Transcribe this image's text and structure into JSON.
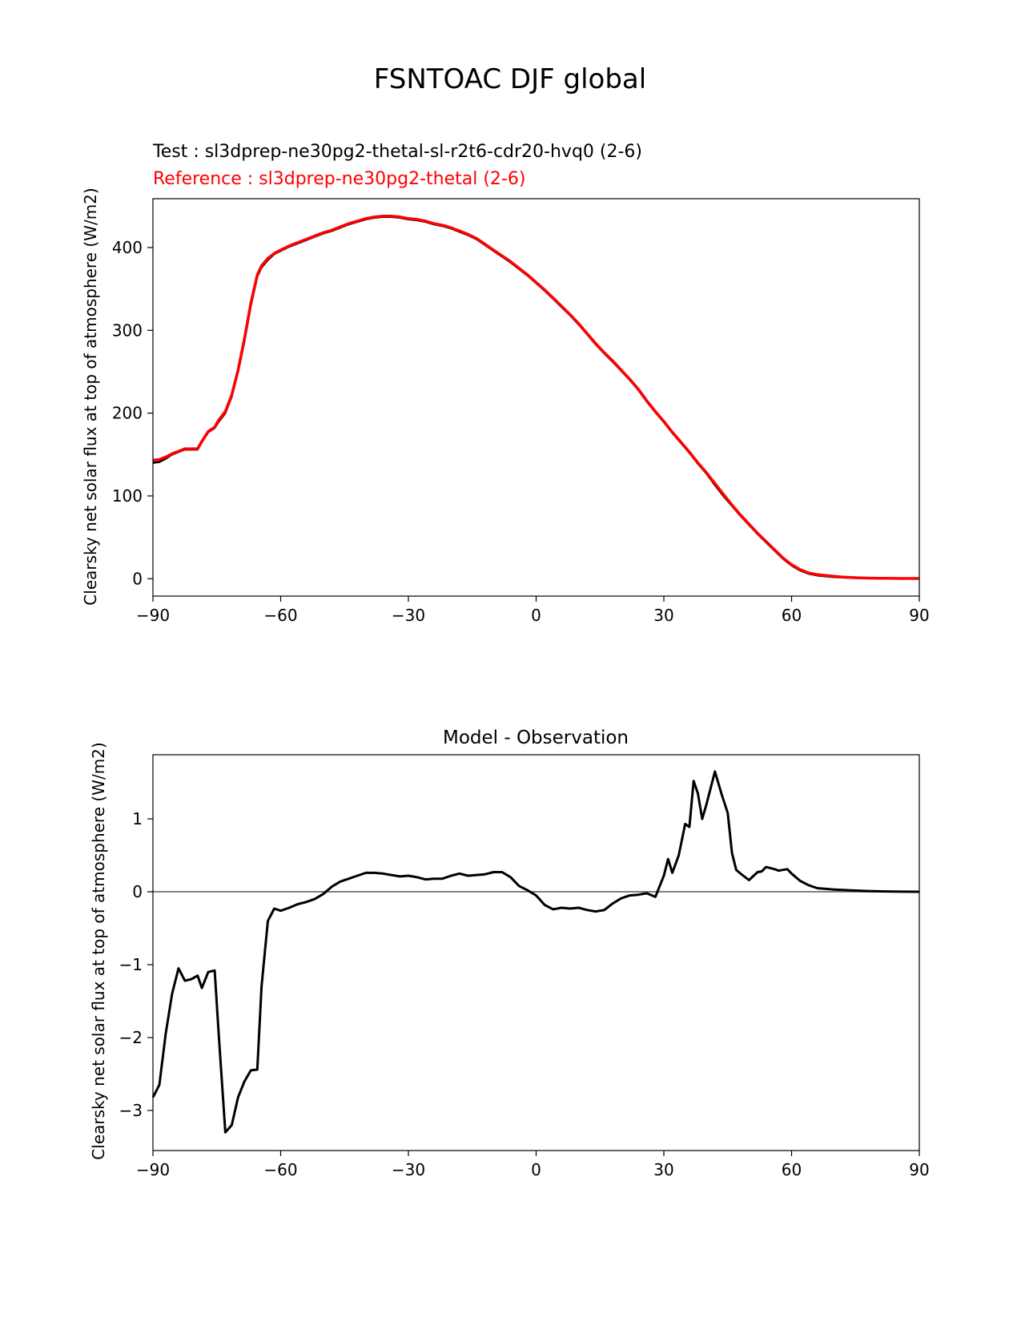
{
  "figure_title": "FSNTOAC DJF global",
  "colors": {
    "test": "#000000",
    "reference": "#ff0000",
    "zero_line": "#808080",
    "axes": "#000000"
  },
  "chart_data": [
    {
      "type": "line",
      "test_label": "Test : sl3dprep-ne30pg2-thetal-sl-r2t6-cdr20-hvq0 (2-6)",
      "reference_label": "Reference : sl3dprep-ne30pg2-thetal (2-6)",
      "xlabel": "",
      "ylabel": "Clearsky net solar flux at top of atmosphere (W/m2)",
      "xlim": [
        -90,
        90
      ],
      "ylim": [
        -21,
        459
      ],
      "xticks": [
        -90,
        -60,
        -30,
        0,
        30,
        60,
        90
      ],
      "xtick_labels": [
        "−90",
        "−60",
        "−30",
        "0",
        "30",
        "60",
        "90"
      ],
      "yticks": [
        0,
        100,
        200,
        300,
        400
      ],
      "ytick_labels": [
        "0",
        "100",
        "200",
        "300",
        "400"
      ],
      "series": [
        {
          "name": "Test",
          "x": [
            -90,
            -88.5,
            -87,
            -85.5,
            -84,
            -82.5,
            -81,
            -79.5,
            -78.5,
            -77,
            -75.5,
            -74.5,
            -73,
            -71.5,
            -70,
            -68.5,
            -67,
            -65.5,
            -64.5,
            -63,
            -61.5,
            -60,
            -58,
            -56,
            -54,
            -52,
            -50,
            -48,
            -46,
            -44,
            -42,
            -40,
            -38,
            -36,
            -34,
            -32,
            -30,
            -28,
            -26,
            -24,
            -22,
            -20,
            -18,
            -16,
            -14,
            -12,
            -10,
            -8,
            -6,
            -4,
            -2,
            0,
            2,
            4,
            6,
            8,
            10,
            12,
            14,
            16,
            18,
            20,
            22,
            24,
            26,
            28,
            30,
            32,
            34,
            36,
            38,
            40,
            42,
            44,
            46,
            48,
            50,
            52,
            54,
            56,
            58,
            60,
            62,
            64,
            66,
            68,
            70,
            72,
            74,
            76,
            78,
            80,
            82,
            84,
            86,
            88,
            90
          ],
          "values": [
            140,
            141,
            145,
            150,
            153,
            156,
            156,
            156,
            165,
            177,
            182,
            190,
            200,
            220,
            250,
            287,
            330,
            365,
            376,
            385,
            392,
            396,
            401,
            405,
            409,
            413,
            417,
            420,
            424,
            428,
            431,
            434,
            436,
            437,
            437,
            436,
            434,
            433,
            431,
            428,
            426,
            423,
            419,
            415,
            410,
            403,
            396,
            389,
            382,
            374,
            366,
            357,
            348,
            338,
            328,
            318,
            307,
            295,
            283,
            272,
            262,
            251,
            240,
            228,
            214,
            201,
            189,
            176,
            164,
            152,
            139,
            127,
            113,
            100,
            88,
            76,
            65,
            54,
            44,
            34,
            24,
            16,
            10,
            6,
            4,
            3,
            2,
            1.5,
            1,
            0.8,
            0.6,
            0.5,
            0.4,
            0.3,
            0.3,
            0.3,
            0.3
          ]
        },
        {
          "name": "Reference",
          "x": [
            -90,
            -88.5,
            -87,
            -85.5,
            -84,
            -82.5,
            -81,
            -79.5,
            -78.5,
            -77,
            -75.5,
            -74.5,
            -73,
            -71.5,
            -70,
            -68.5,
            -67,
            -65.5,
            -64.5,
            -63,
            -61.5,
            -60,
            -58,
            -56,
            -54,
            -52,
            -50,
            -48,
            -46,
            -44,
            -42,
            -40,
            -38,
            -36,
            -34,
            -32,
            -30,
            -28,
            -26,
            -24,
            -22,
            -20,
            -18,
            -16,
            -14,
            -12,
            -10,
            -8,
            -6,
            -4,
            -2,
            0,
            2,
            4,
            6,
            8,
            10,
            12,
            14,
            16,
            18,
            20,
            22,
            24,
            26,
            28,
            30,
            32,
            34,
            36,
            38,
            40,
            42,
            44,
            46,
            48,
            50,
            52,
            54,
            56,
            58,
            60,
            62,
            64,
            66,
            68,
            70,
            72,
            74,
            76,
            78,
            80,
            82,
            84,
            86,
            88,
            90
          ],
          "values": [
            143,
            144,
            147,
            151,
            154,
            157,
            157,
            157,
            166,
            178,
            183,
            192,
            202,
            222,
            252,
            290,
            333,
            367,
            378,
            387,
            393,
            397,
            402,
            406,
            410,
            414,
            418,
            421,
            425,
            429,
            432,
            435,
            437,
            438,
            438,
            437,
            435,
            434,
            432,
            429,
            427,
            424,
            420,
            416,
            411,
            404,
            397,
            390,
            383,
            375,
            367,
            358,
            349,
            339,
            329,
            319,
            308,
            296,
            284,
            273,
            263,
            252,
            241,
            229,
            215,
            202,
            190,
            177,
            165,
            153,
            140,
            128,
            115,
            102,
            89,
            77,
            66,
            55,
            45,
            35,
            25,
            17,
            11,
            7,
            5,
            4,
            3,
            2,
            1.5,
            1,
            0.8,
            0.6,
            0.5,
            0.4,
            0.3,
            0.3,
            0.3
          ]
        }
      ]
    },
    {
      "type": "line",
      "title": "Model - Observation",
      "xlabel": "",
      "ylabel": "Clearsky net solar flux at top of atmosphere (W/m2)",
      "xlim": [
        -90,
        90
      ],
      "ylim": [
        -3.55,
        1.88
      ],
      "xticks": [
        -90,
        -60,
        -30,
        0,
        30,
        60,
        90
      ],
      "xtick_labels": [
        "−90",
        "−60",
        "−30",
        "0",
        "30",
        "60",
        "90"
      ],
      "yticks": [
        -3,
        -2,
        -1,
        0,
        1
      ],
      "ytick_labels": [
        "−3",
        "−2",
        "−1",
        "0",
        "1"
      ],
      "zero_line": 0,
      "series": [
        {
          "name": "Difference",
          "x": [
            -90,
            -88.5,
            -87,
            -85.5,
            -84,
            -82.5,
            -81,
            -79.5,
            -78.5,
            -77,
            -75.5,
            -74.5,
            -73,
            -71.5,
            -70,
            -68.5,
            -67,
            -65.5,
            -64.5,
            -63,
            -61.5,
            -60,
            -58,
            -56,
            -54,
            -52,
            -50,
            -48,
            -46,
            -44,
            -42,
            -40,
            -38,
            -36,
            -34,
            -32,
            -30,
            -28,
            -26,
            -24,
            -22,
            -20,
            -18,
            -16,
            -14,
            -12,
            -10,
            -8,
            -6,
            -4,
            -2,
            0,
            2,
            4,
            6,
            8,
            10,
            12,
            14,
            16,
            18,
            20,
            22,
            24,
            26,
            28,
            30,
            31,
            32,
            33.5,
            35,
            36,
            37,
            38,
            39,
            40,
            42,
            43.5,
            45,
            46,
            47,
            48,
            50,
            52,
            53,
            54,
            56,
            57,
            58,
            59,
            60,
            62,
            64,
            66,
            68,
            70,
            74,
            78,
            82,
            86,
            90
          ],
          "values": [
            -2.82,
            -2.65,
            -1.95,
            -1.4,
            -1.05,
            -1.22,
            -1.2,
            -1.15,
            -1.32,
            -1.1,
            -1.08,
            -2.0,
            -3.3,
            -3.2,
            -2.82,
            -2.6,
            -2.45,
            -2.44,
            -1.3,
            -0.4,
            -0.23,
            -0.26,
            -0.22,
            -0.17,
            -0.14,
            -0.1,
            -0.03,
            0.07,
            0.14,
            0.18,
            0.22,
            0.26,
            0.26,
            0.25,
            0.23,
            0.21,
            0.22,
            0.2,
            0.17,
            0.18,
            0.18,
            0.22,
            0.25,
            0.22,
            0.23,
            0.24,
            0.27,
            0.27,
            0.2,
            0.08,
            0.02,
            -0.05,
            -0.18,
            -0.24,
            -0.22,
            -0.23,
            -0.22,
            -0.25,
            -0.27,
            -0.25,
            -0.16,
            -0.09,
            -0.05,
            -0.04,
            -0.02,
            -0.07,
            0.22,
            0.45,
            0.26,
            0.5,
            0.93,
            0.89,
            1.52,
            1.35,
            1.0,
            1.2,
            1.65,
            1.35,
            1.08,
            0.53,
            0.3,
            0.25,
            0.16,
            0.27,
            0.28,
            0.34,
            0.31,
            0.29,
            0.3,
            0.31,
            0.25,
            0.15,
            0.09,
            0.05,
            0.04,
            0.03,
            0.02,
            0.01,
            0.005,
            0.002,
            0.0
          ]
        }
      ]
    }
  ]
}
